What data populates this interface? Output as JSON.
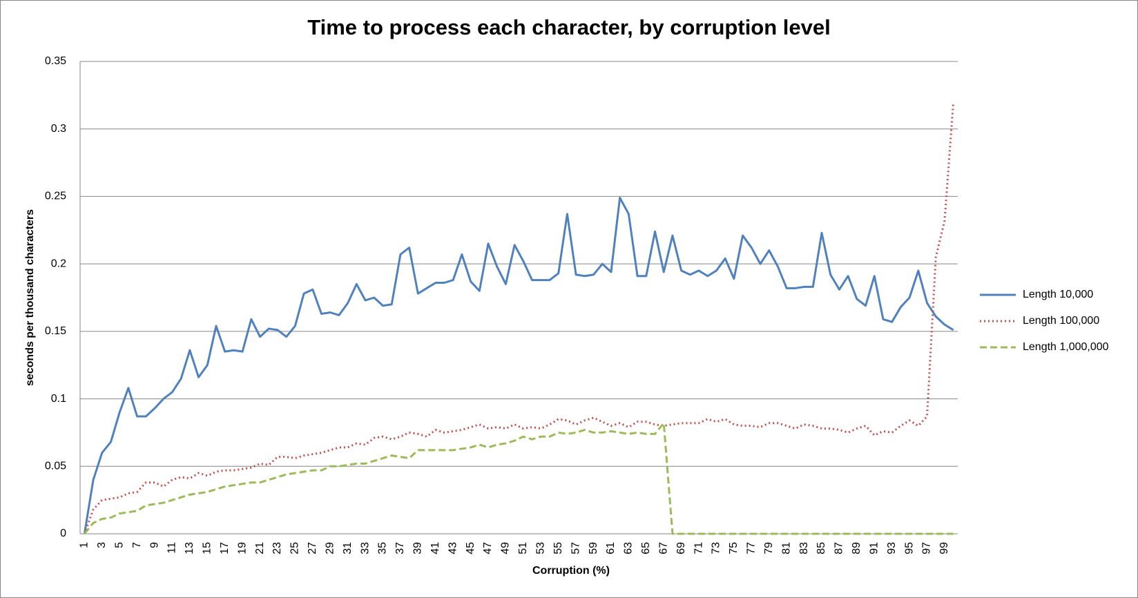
{
  "chart_data": {
    "type": "line",
    "title": "Time to process each character, by corruption level",
    "x_label": "Corruption (%)",
    "y_label": "seconds per thousand characters",
    "categories": [
      1,
      null,
      3,
      null,
      5,
      null,
      7,
      null,
      9,
      null,
      11,
      null,
      13,
      null,
      15,
      null,
      17,
      null,
      19,
      null,
      21,
      null,
      23,
      null,
      25,
      null,
      27,
      null,
      29,
      null,
      31,
      null,
      33,
      null,
      35,
      null,
      37,
      null,
      39,
      null,
      41,
      null,
      43,
      null,
      45,
      null,
      47,
      null,
      49,
      null,
      51,
      null,
      53,
      null,
      55,
      null,
      57,
      null,
      59,
      null,
      61,
      null,
      63,
      null,
      65,
      null,
      67,
      null,
      69,
      null,
      71,
      null,
      73,
      null,
      75,
      null,
      77,
      null,
      79,
      null,
      81,
      null,
      83,
      null,
      85,
      null,
      87,
      null,
      89,
      null,
      91,
      null,
      93,
      null,
      95,
      null,
      97,
      null,
      99,
      null
    ],
    "ylim": [
      0,
      0.35
    ],
    "yticks": [
      0,
      0.05,
      0.1,
      0.15,
      0.2,
      0.25,
      0.3,
      0.35
    ],
    "grid": true,
    "legend": "right",
    "series": [
      {
        "name": "Length 10,000",
        "color": "#4f81bd",
        "line_style": "solid",
        "values": [
          0,
          0.04,
          0.06,
          0.068,
          0.09,
          0.108,
          0.087,
          0.087,
          0.093,
          0.1,
          0.105,
          0.115,
          0.136,
          0.116,
          0.125,
          0.154,
          0.135,
          0.136,
          0.135,
          0.159,
          0.146,
          0.152,
          0.151,
          0.146,
          0.154,
          0.178,
          0.181,
          0.163,
          0.164,
          0.162,
          0.171,
          0.185,
          0.173,
          0.175,
          0.169,
          0.17,
          0.207,
          0.212,
          0.178,
          0.182,
          0.186,
          0.186,
          0.188,
          0.207,
          0.187,
          0.18,
          0.215,
          0.198,
          0.185,
          0.214,
          0.202,
          0.188,
          0.188,
          0.188,
          0.193,
          0.237,
          0.192,
          0.191,
          0.192,
          0.2,
          0.194,
          0.249,
          0.237,
          0.191,
          0.191,
          0.224,
          0.194,
          0.221,
          0.195,
          0.192,
          0.195,
          0.191,
          0.195,
          0.204,
          0.189,
          0.221,
          0.212,
          0.2,
          0.21,
          0.198,
          0.182,
          0.182,
          0.183,
          0.183,
          0.223,
          0.192,
          0.181,
          0.191,
          0.174,
          0.169,
          0.191,
          0.159,
          0.157,
          0.168,
          0.175,
          0.195,
          0.171,
          0.161,
          0.155,
          0.151
        ]
      },
      {
        "name": "Length 100,000",
        "color": "#c0504d",
        "line_style": "dot",
        "values": [
          0,
          0.018,
          0.025,
          0.026,
          0.027,
          0.03,
          0.031,
          0.038,
          0.038,
          0.035,
          0.04,
          0.042,
          0.041,
          0.045,
          0.043,
          0.046,
          0.047,
          0.047,
          0.048,
          0.049,
          0.052,
          0.051,
          0.057,
          0.057,
          0.056,
          0.058,
          0.059,
          0.06,
          0.062,
          0.064,
          0.064,
          0.067,
          0.066,
          0.071,
          0.072,
          0.07,
          0.072,
          0.075,
          0.074,
          0.072,
          0.077,
          0.075,
          0.076,
          0.077,
          0.079,
          0.081,
          0.078,
          0.079,
          0.078,
          0.081,
          0.078,
          0.079,
          0.078,
          0.081,
          0.085,
          0.084,
          0.081,
          0.084,
          0.086,
          0.083,
          0.08,
          0.082,
          0.079,
          0.083,
          0.083,
          0.081,
          0.08,
          0.081,
          0.082,
          0.082,
          0.082,
          0.085,
          0.083,
          0.085,
          0.081,
          0.08,
          0.08,
          0.079,
          0.082,
          0.082,
          0.08,
          0.078,
          0.081,
          0.08,
          0.078,
          0.078,
          0.077,
          0.075,
          0.078,
          0.08,
          0.073,
          0.076,
          0.075,
          0.08,
          0.084,
          0.08,
          0.087,
          0.205,
          0.232,
          0.32
        ]
      },
      {
        "name": "Length 1,000,000",
        "color": "#9bbb59",
        "line_style": "dash",
        "values": [
          0,
          0.008,
          0.011,
          0.012,
          0.015,
          0.016,
          0.017,
          0.021,
          0.022,
          0.023,
          0.025,
          0.027,
          0.029,
          0.03,
          0.031,
          0.033,
          0.035,
          0.036,
          0.037,
          0.038,
          0.038,
          0.04,
          0.042,
          0.044,
          0.045,
          0.046,
          0.047,
          0.047,
          0.05,
          0.05,
          0.051,
          0.052,
          0.052,
          0.054,
          0.056,
          0.058,
          0.057,
          0.056,
          0.062,
          0.062,
          0.062,
          0.062,
          0.062,
          0.063,
          0.064,
          0.066,
          0.064,
          0.066,
          0.067,
          0.069,
          0.072,
          0.07,
          0.072,
          0.072,
          0.075,
          0.074,
          0.075,
          0.077,
          0.075,
          0.075,
          0.076,
          0.075,
          0.074,
          0.075,
          0.074,
          0.074,
          0.082,
          0,
          0,
          0,
          0,
          0,
          0,
          0,
          0,
          0,
          0,
          0,
          0,
          0,
          0,
          0,
          0,
          0,
          0,
          0,
          0,
          0,
          0,
          0,
          0,
          0,
          0,
          0,
          0,
          0,
          0,
          0,
          0,
          0
        ]
      }
    ]
  }
}
